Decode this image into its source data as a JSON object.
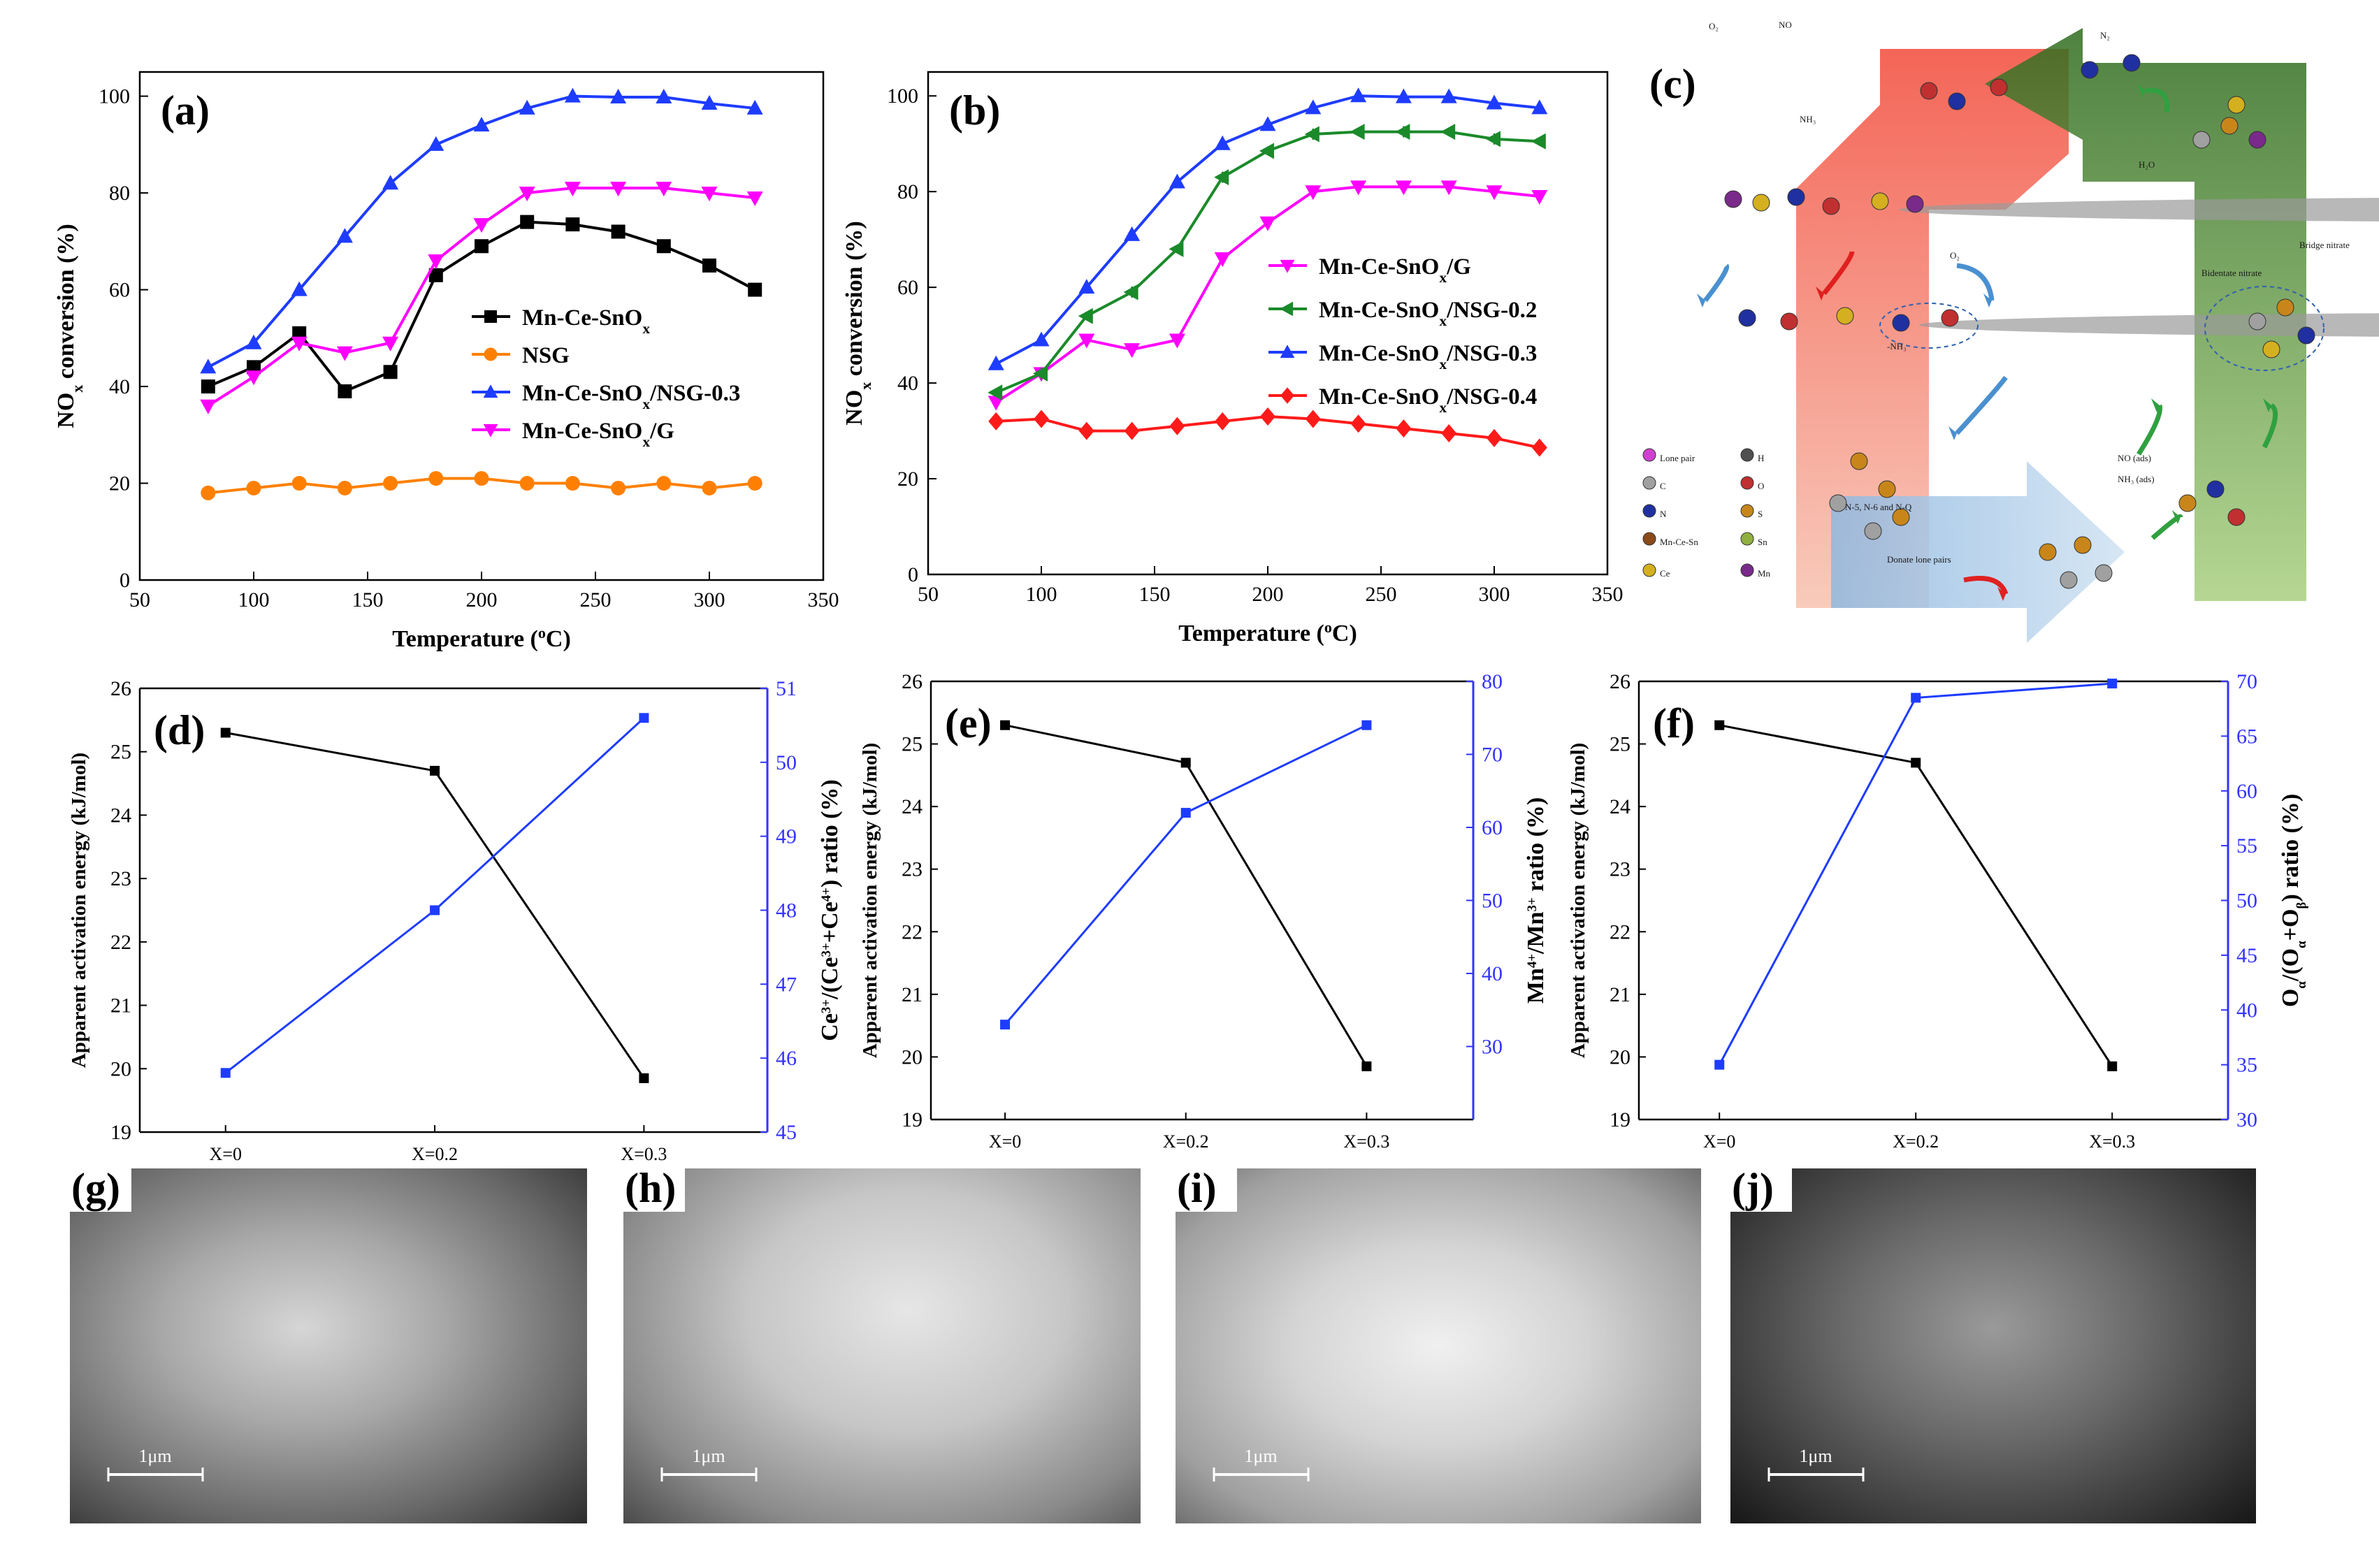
{
  "colors": {
    "black": "#000000",
    "orange": "#ff8000",
    "blue": "#1e3cff",
    "magenta": "#ff00ff",
    "green": "#1a8a2a",
    "red": "#ff1a1a",
    "axis_blue": "#3333ff"
  },
  "panels": {
    "a": {
      "label": "(a)"
    },
    "b": {
      "label": "(b)"
    },
    "c": {
      "label": "(c)"
    },
    "d": {
      "label": "(d)"
    },
    "e": {
      "label": "(e)"
    },
    "f": {
      "label": "(f)"
    },
    "g": {
      "label": "(g)"
    },
    "h": {
      "label": "(h)"
    },
    "i": {
      "label": "(i)"
    },
    "j": {
      "label": "(j)"
    }
  },
  "chart_data": [
    {
      "id": "a",
      "type": "line",
      "xlabel": "Temperature (°C)",
      "ylabel": "NOx conversion (%)",
      "xlim": [
        50,
        350
      ],
      "ylim": [
        0,
        105
      ],
      "xticks": [
        50,
        100,
        150,
        200,
        250,
        300,
        350
      ],
      "yticks": [
        0,
        20,
        40,
        60,
        80,
        100
      ],
      "x": [
        80,
        100,
        120,
        140,
        160,
        180,
        200,
        220,
        240,
        260,
        280,
        300,
        320
      ],
      "legend_position": "center-right",
      "series": [
        {
          "name": "Mn-Ce-SnOx",
          "color": "#000000",
          "marker": "square",
          "values": [
            40,
            44,
            51,
            39,
            43,
            63,
            69,
            74,
            73.5,
            72,
            69,
            65,
            60
          ]
        },
        {
          "name": "NSG",
          "color": "#ff8000",
          "marker": "circle",
          "values": [
            18,
            19,
            20,
            19,
            20,
            21,
            21,
            20,
            20,
            19,
            20,
            19,
            20
          ]
        },
        {
          "name": "Mn-Ce-SnOx/NSG-0.3",
          "color": "#1e3cff",
          "marker": "triangle-up",
          "values": [
            44,
            49,
            60,
            71,
            82,
            90,
            94,
            97.5,
            100,
            99.8,
            99.8,
            98.5,
            97.5
          ]
        },
        {
          "name": "Mn-Ce-SnOx/G",
          "color": "#ff00ff",
          "marker": "triangle-down",
          "values": [
            36,
            42,
            49,
            47,
            49,
            66,
            73.5,
            80,
            81,
            81,
            81,
            80,
            79
          ]
        }
      ]
    },
    {
      "id": "b",
      "type": "line",
      "xlabel": "Temperature (°C)",
      "ylabel": "NOx conversion (%)",
      "xlim": [
        50,
        350
      ],
      "ylim": [
        0,
        105
      ],
      "xticks": [
        50,
        100,
        150,
        200,
        250,
        300,
        350
      ],
      "yticks": [
        0,
        20,
        40,
        60,
        80,
        100
      ],
      "x": [
        80,
        100,
        120,
        140,
        160,
        180,
        200,
        220,
        240,
        260,
        280,
        300,
        320
      ],
      "legend_position": "center-right",
      "series": [
        {
          "name": "Mn-Ce-SnOx/G",
          "color": "#ff00ff",
          "marker": "triangle-down",
          "values": [
            36,
            42,
            49,
            47,
            49,
            66,
            73.5,
            80,
            81,
            81,
            81,
            80,
            79
          ]
        },
        {
          "name": "Mn-Ce-SnOx/NSG-0.2",
          "color": "#1a8a2a",
          "marker": "triangle-left",
          "values": [
            38,
            42,
            54,
            59,
            68,
            83,
            88.5,
            92,
            92.5,
            92.5,
            92.5,
            91,
            90.5
          ]
        },
        {
          "name": "Mn-Ce-SnOx/NSG-0.3",
          "color": "#1e3cff",
          "marker": "triangle-up",
          "values": [
            44,
            49,
            60,
            71,
            82,
            90,
            94,
            97.5,
            100,
            99.8,
            99.8,
            98.5,
            97.5
          ]
        },
        {
          "name": "Mn-Ce-SnOx/NSG-0.4",
          "color": "#ff1a1a",
          "marker": "diamond",
          "values": [
            32,
            32.5,
            30,
            30,
            31,
            32,
            33,
            32.5,
            31.5,
            30.5,
            29.5,
            28.5,
            26.5
          ]
        }
      ]
    },
    {
      "id": "d",
      "type": "line",
      "categories": [
        "X=0",
        "X=0.2",
        "X=0.3"
      ],
      "ylabel_left": "Apparent activation energy (kJ/mol)",
      "ylabel_right": "Ce3+/(Ce3++Ce4+) ratio (%)",
      "ylim_left": [
        19,
        26
      ],
      "ylim_right": [
        45,
        51
      ],
      "yticks_left": [
        19,
        20,
        21,
        22,
        23,
        24,
        25,
        26
      ],
      "yticks_right": [
        45,
        46,
        47,
        48,
        49,
        50,
        51
      ],
      "series": [
        {
          "name": "Apparent activation energy",
          "axis": "left",
          "color": "#000000",
          "values": [
            25.3,
            24.7,
            19.85
          ]
        },
        {
          "name": "Ce3+/(Ce3++Ce4+) ratio",
          "axis": "right",
          "color": "#1e3cff",
          "values": [
            45.8,
            48.0,
            50.6
          ]
        }
      ]
    },
    {
      "id": "e",
      "type": "line",
      "categories": [
        "X=0",
        "X=0.2",
        "X=0.3"
      ],
      "ylabel_left": "Apparent activation energy (kJ/mol)",
      "ylabel_right": "Mn4+/Mn3+ ratio (%)",
      "ylim_left": [
        19,
        26
      ],
      "ylim_right": [
        20,
        80
      ],
      "yticks_left": [
        19,
        20,
        21,
        22,
        23,
        24,
        25,
        26
      ],
      "yticks_right": [
        30,
        40,
        50,
        60,
        70,
        80
      ],
      "series": [
        {
          "name": "Apparent activation energy",
          "axis": "left",
          "color": "#000000",
          "values": [
            25.3,
            24.7,
            19.85
          ]
        },
        {
          "name": "Mn4+/Mn3+ ratio",
          "axis": "right",
          "color": "#1e3cff",
          "values": [
            33,
            62,
            74
          ]
        }
      ]
    },
    {
      "id": "f",
      "type": "line",
      "categories": [
        "X=0",
        "X=0.2",
        "X=0.3"
      ],
      "ylabel_left": "Apparent activation energy (kJ/mol)",
      "ylabel_right": "Oα/(Oα+Oβ) ratio (%)",
      "ylim_left": [
        19,
        26
      ],
      "ylim_right": [
        30,
        70
      ],
      "yticks_left": [
        19,
        20,
        21,
        22,
        23,
        24,
        25,
        26
      ],
      "yticks_right": [
        30,
        35,
        40,
        45,
        50,
        55,
        60,
        65,
        70
      ],
      "series": [
        {
          "name": "Apparent activation energy",
          "axis": "left",
          "color": "#000000",
          "values": [
            25.3,
            24.7,
            19.85
          ]
        },
        {
          "name": "Oα/(Oα+Oβ) ratio",
          "axis": "right",
          "color": "#1e3cff",
          "values": [
            35,
            68.5,
            69.8
          ]
        }
      ]
    }
  ],
  "schematic": {
    "labels": [
      "O₂",
      "NO",
      "NH₃",
      "N₂",
      "H₂O",
      "O₂",
      "-NH₃",
      "NO (ads)",
      "NH₃ (ads)",
      "Lone pair",
      "H",
      "C",
      "O",
      "N",
      "S",
      "Mn-Ce-Sn",
      "Sn",
      "Ce",
      "Mn",
      "Donate lone pairs",
      "N-5, N-6 and N-Q",
      "Bridge nitrate",
      "Bidentate nitrate"
    ]
  },
  "sem": {
    "scale_bar": "1μm"
  }
}
